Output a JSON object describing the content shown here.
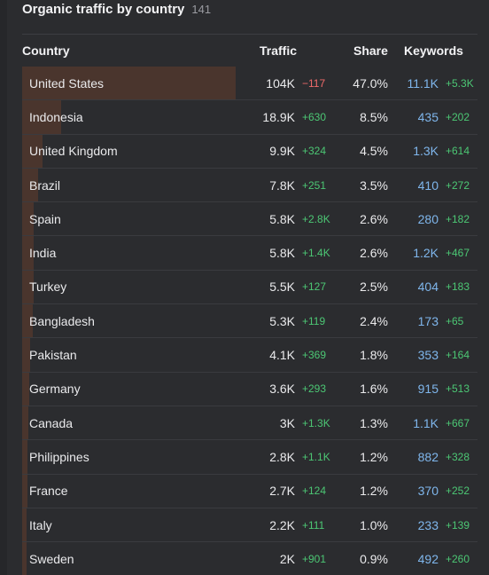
{
  "widget": {
    "title": "Organic traffic by country",
    "count": "141"
  },
  "columns": {
    "country": "Country",
    "traffic": "Traffic",
    "share": "Share",
    "keywords": "Keywords"
  },
  "colors": {
    "background": "#2b2c2f",
    "bar": "#4a352d",
    "positive": "#4cc774",
    "negative": "#ef6a6a",
    "keywords": "#7fb6ec"
  },
  "rows": [
    {
      "country": "United States",
      "traffic": "104K",
      "traffic_delta": "−117",
      "traffic_delta_dir": "neg",
      "share": "47.0%",
      "share_value": 47.0,
      "keywords": "11.1K",
      "keywords_delta": "+5.3K"
    },
    {
      "country": "Indonesia",
      "traffic": "18.9K",
      "traffic_delta": "+630",
      "traffic_delta_dir": "pos",
      "share": "8.5%",
      "share_value": 8.5,
      "keywords": "435",
      "keywords_delta": "+202"
    },
    {
      "country": "United Kingdom",
      "traffic": "9.9K",
      "traffic_delta": "+324",
      "traffic_delta_dir": "pos",
      "share": "4.5%",
      "share_value": 4.5,
      "keywords": "1.3K",
      "keywords_delta": "+614"
    },
    {
      "country": "Brazil",
      "traffic": "7.8K",
      "traffic_delta": "+251",
      "traffic_delta_dir": "pos",
      "share": "3.5%",
      "share_value": 3.5,
      "keywords": "410",
      "keywords_delta": "+272"
    },
    {
      "country": "Spain",
      "traffic": "5.8K",
      "traffic_delta": "+2.8K",
      "traffic_delta_dir": "pos",
      "share": "2.6%",
      "share_value": 2.6,
      "keywords": "280",
      "keywords_delta": "+182"
    },
    {
      "country": "India",
      "traffic": "5.8K",
      "traffic_delta": "+1.4K",
      "traffic_delta_dir": "pos",
      "share": "2.6%",
      "share_value": 2.6,
      "keywords": "1.2K",
      "keywords_delta": "+467"
    },
    {
      "country": "Turkey",
      "traffic": "5.5K",
      "traffic_delta": "+127",
      "traffic_delta_dir": "pos",
      "share": "2.5%",
      "share_value": 2.5,
      "keywords": "404",
      "keywords_delta": "+183"
    },
    {
      "country": "Bangladesh",
      "traffic": "5.3K",
      "traffic_delta": "+119",
      "traffic_delta_dir": "pos",
      "share": "2.4%",
      "share_value": 2.4,
      "keywords": "173",
      "keywords_delta": "+65"
    },
    {
      "country": "Pakistan",
      "traffic": "4.1K",
      "traffic_delta": "+369",
      "traffic_delta_dir": "pos",
      "share": "1.8%",
      "share_value": 1.8,
      "keywords": "353",
      "keywords_delta": "+164"
    },
    {
      "country": "Germany",
      "traffic": "3.6K",
      "traffic_delta": "+293",
      "traffic_delta_dir": "pos",
      "share": "1.6%",
      "share_value": 1.6,
      "keywords": "915",
      "keywords_delta": "+513"
    },
    {
      "country": "Canada",
      "traffic": "3K",
      "traffic_delta": "+1.3K",
      "traffic_delta_dir": "pos",
      "share": "1.3%",
      "share_value": 1.3,
      "keywords": "1.1K",
      "keywords_delta": "+667"
    },
    {
      "country": "Philippines",
      "traffic": "2.8K",
      "traffic_delta": "+1.1K",
      "traffic_delta_dir": "pos",
      "share": "1.2%",
      "share_value": 1.2,
      "keywords": "882",
      "keywords_delta": "+328"
    },
    {
      "country": "France",
      "traffic": "2.7K",
      "traffic_delta": "+124",
      "traffic_delta_dir": "pos",
      "share": "1.2%",
      "share_value": 1.2,
      "keywords": "370",
      "keywords_delta": "+252"
    },
    {
      "country": "Italy",
      "traffic": "2.2K",
      "traffic_delta": "+111",
      "traffic_delta_dir": "pos",
      "share": "1.0%",
      "share_value": 1.0,
      "keywords": "233",
      "keywords_delta": "+139"
    },
    {
      "country": "Sweden",
      "traffic": "2K",
      "traffic_delta": "+901",
      "traffic_delta_dir": "pos",
      "share": "0.9%",
      "share_value": 0.9,
      "keywords": "492",
      "keywords_delta": "+260"
    }
  ]
}
